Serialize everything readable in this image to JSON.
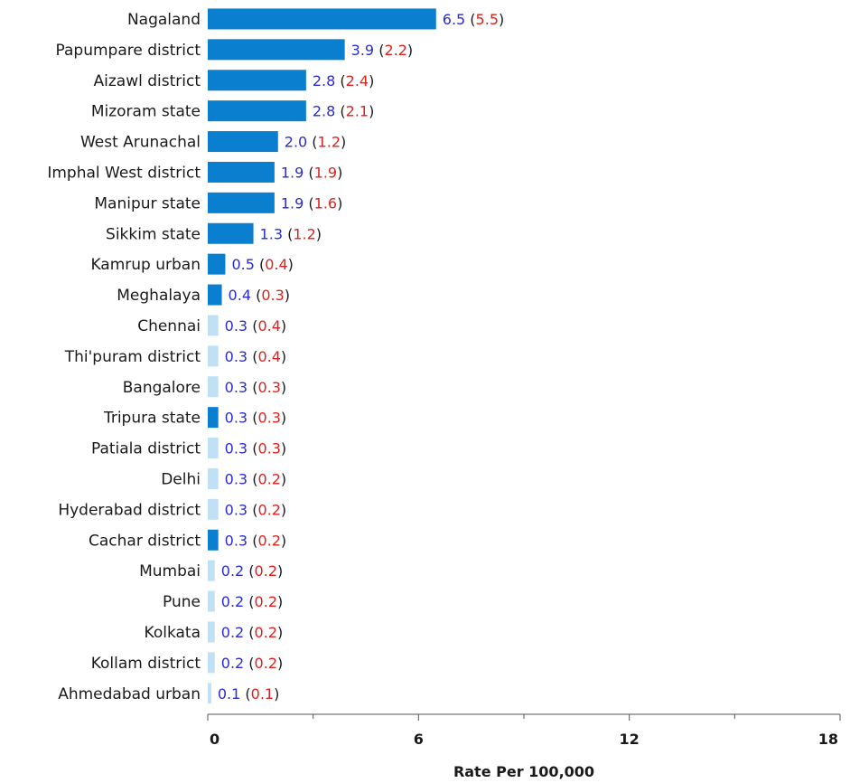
{
  "chart_data": {
    "type": "bar",
    "orientation": "horizontal",
    "xlabel": "Rate Per 100,000",
    "xlim": [
      0,
      18
    ],
    "xticks": [
      0,
      6,
      12,
      18
    ],
    "grid": false,
    "colors": {
      "northeast": "#0b7fcf",
      "other": "#bfe0f5",
      "value": "#2b2bd6",
      "paren_value": "#e0201c"
    },
    "categories": [
      "Nagaland",
      "Papumpare district",
      "Aizawl district",
      "Mizoram state",
      "West Arunachal",
      "Imphal West district",
      "Manipur state",
      "Sikkim state",
      "Kamrup urban",
      "Meghalaya",
      "Chennai",
      "Thi'puram district",
      "Bangalore",
      "Tripura state",
      "Patiala district",
      "Delhi",
      "Hyderabad district",
      "Cachar district",
      "Mumbai",
      "Pune",
      "Kolkata",
      "Kollam district",
      "Ahmedabad urban"
    ],
    "values": [
      6.5,
      3.9,
      2.8,
      2.8,
      2.0,
      1.9,
      1.9,
      1.3,
      0.5,
      0.4,
      0.3,
      0.3,
      0.3,
      0.3,
      0.3,
      0.3,
      0.3,
      0.3,
      0.2,
      0.2,
      0.2,
      0.2,
      0.1
    ],
    "value_labels": [
      "6.5",
      "3.9",
      "2.8",
      "2.8",
      "2.0",
      "1.9",
      "1.9",
      "1.3",
      "0.5",
      "0.4",
      "0.3",
      "0.3",
      "0.3",
      "0.3",
      "0.3",
      "0.3",
      "0.3",
      "0.3",
      "0.2",
      "0.2",
      "0.2",
      "0.2",
      "0.1"
    ],
    "paren_values": [
      "5.5",
      "2.2",
      "2.4",
      "2.1",
      "1.2",
      "1.9",
      "1.6",
      "1.2",
      "0.4",
      "0.3",
      "0.4",
      "0.4",
      "0.3",
      "0.3",
      "0.3",
      "0.2",
      "0.2",
      "0.2",
      "0.2",
      "0.2",
      "0.2",
      "0.2",
      "0.1"
    ],
    "group": [
      "northeast",
      "northeast",
      "northeast",
      "northeast",
      "northeast",
      "northeast",
      "northeast",
      "northeast",
      "northeast",
      "northeast",
      "other",
      "other",
      "other",
      "northeast",
      "other",
      "other",
      "other",
      "northeast",
      "other",
      "other",
      "other",
      "other",
      "other"
    ]
  }
}
